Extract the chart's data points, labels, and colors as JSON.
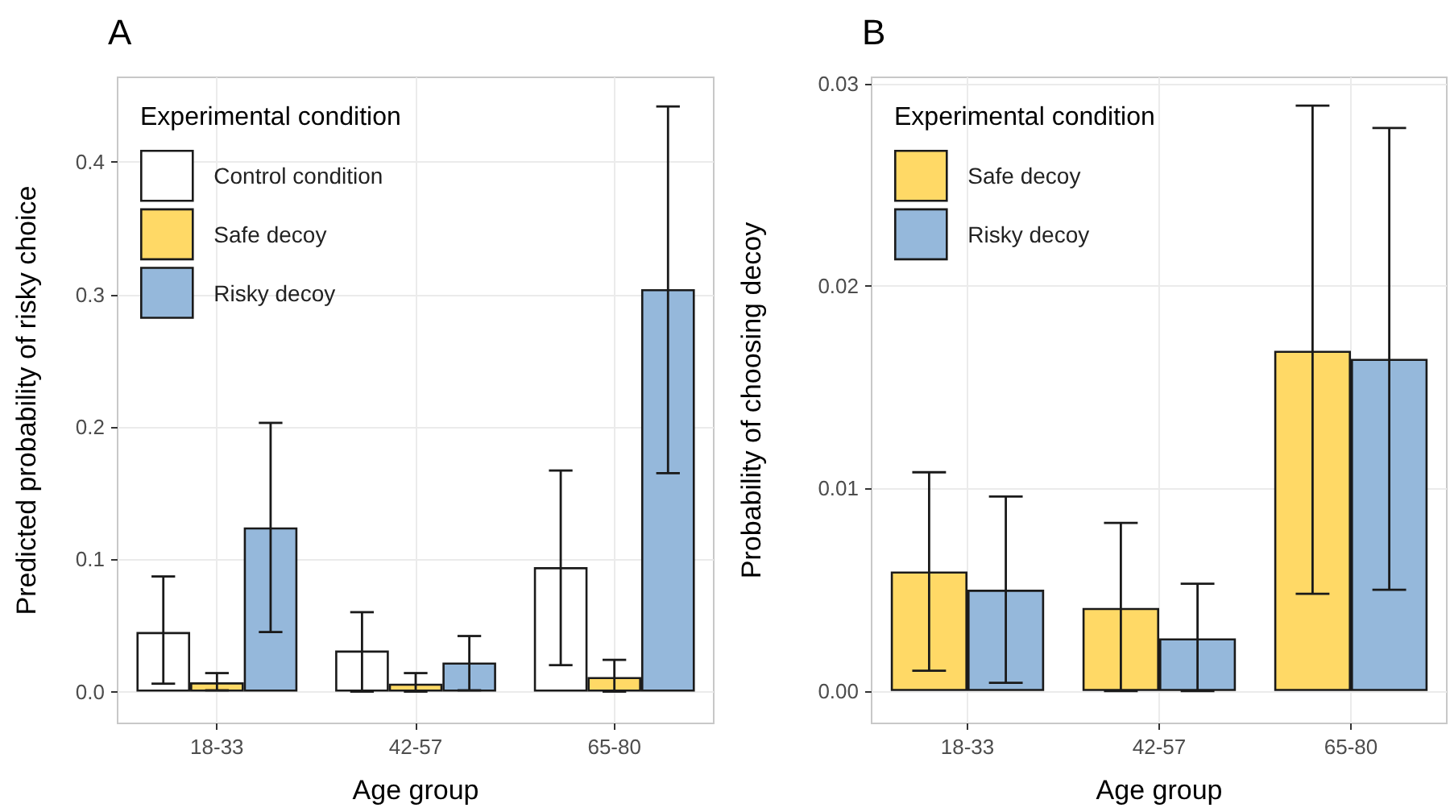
{
  "chart_data": [
    {
      "type": "bar",
      "title": "A",
      "xlabel": "Age group",
      "ylabel": "Predicted probability of risky choice",
      "legend_title": "Experimental condition",
      "categories": [
        "18-33",
        "42-57",
        "65-80"
      ],
      "series": [
        {
          "name": "Control condition",
          "color": "#ffffff",
          "values": [
            0.045,
            0.031,
            0.094
          ],
          "errors": [
            [
              0.006,
              0.087
            ],
            [
              0.0,
              0.06
            ],
            [
              0.02,
              0.167
            ]
          ]
        },
        {
          "name": "Safe decoy",
          "color": "#ffd966",
          "values": [
            0.007,
            0.006,
            0.011
          ],
          "errors": [
            [
              0.001,
              0.014
            ],
            [
              0.0,
              0.014
            ],
            [
              0.0,
              0.024
            ]
          ]
        },
        {
          "name": "Risky decoy",
          "color": "#95b8db",
          "values": [
            0.124,
            0.022,
            0.304
          ],
          "errors": [
            [
              0.045,
              0.203
            ],
            [
              0.001,
              0.042
            ],
            [
              0.165,
              0.442
            ]
          ]
        }
      ],
      "ylim": [
        -0.024,
        0.464
      ],
      "yticks": [
        {
          "value": 0,
          "label": "0.0"
        },
        {
          "value": 0.1,
          "label": "0.1"
        },
        {
          "value": 0.2,
          "label": "0.2"
        },
        {
          "value": 0.3,
          "label": "0.3"
        },
        {
          "value": 0.4,
          "label": "0.4"
        }
      ],
      "grid": true,
      "legend": "top left"
    },
    {
      "type": "bar",
      "title": "B",
      "xlabel": "Age group",
      "ylabel": "Probability of choosing decoy",
      "legend_title": "Experimental condition",
      "categories": [
        "18-33",
        "42-57",
        "65-80"
      ],
      "series": [
        {
          "name": "Safe decoy",
          "color": "#ffd966",
          "values": [
            0.0059,
            0.0041,
            0.0168
          ],
          "errors": [
            [
              0.001,
              0.0108
            ],
            [
              0.0,
              0.0083
            ],
            [
              0.0048,
              0.0289
            ]
          ]
        },
        {
          "name": "Risky decoy",
          "color": "#95b8db",
          "values": [
            0.005,
            0.0026,
            0.0164
          ],
          "errors": [
            [
              0.0004,
              0.0096
            ],
            [
              0.0,
              0.0053
            ],
            [
              0.005,
              0.0278
            ]
          ]
        }
      ],
      "ylim": [
        -0.0016,
        0.0303
      ],
      "yticks": [
        {
          "value": 0,
          "label": "0.00"
        },
        {
          "value": 0.01,
          "label": "0.01"
        },
        {
          "value": 0.02,
          "label": "0.02"
        },
        {
          "value": 0.03,
          "label": "0.03"
        }
      ],
      "grid": true,
      "legend": "top left"
    }
  ]
}
